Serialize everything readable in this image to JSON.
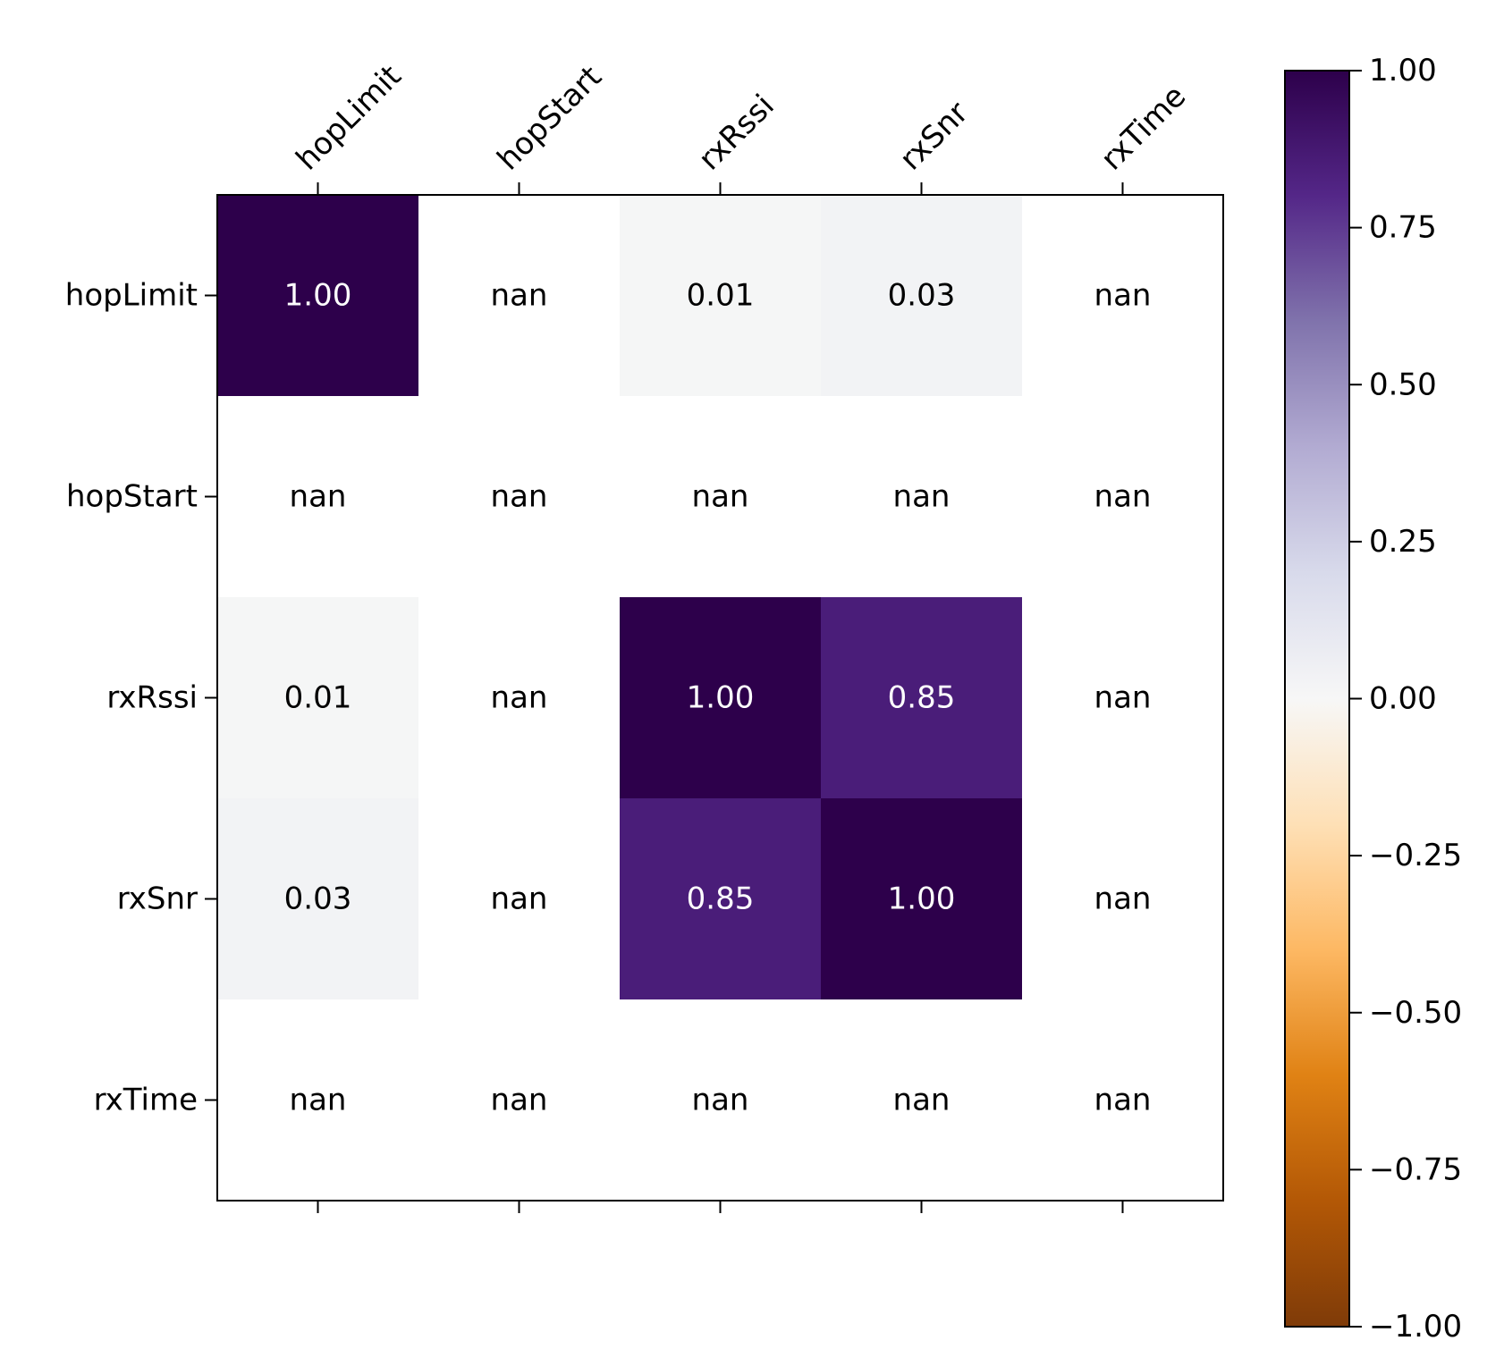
{
  "chart_data": {
    "type": "heatmap",
    "x_labels": [
      "hopLimit",
      "hopStart",
      "rxRssi",
      "rxSnr",
      "rxTime"
    ],
    "y_labels": [
      "hopLimit",
      "hopStart",
      "rxRssi",
      "rxSnr",
      "rxTime"
    ],
    "values": [
      [
        1.0,
        null,
        0.01,
        0.03,
        null
      ],
      [
        null,
        null,
        null,
        null,
        null
      ],
      [
        0.01,
        null,
        1.0,
        0.85,
        null
      ],
      [
        0.03,
        null,
        0.85,
        1.0,
        null
      ],
      [
        null,
        null,
        null,
        null,
        null
      ]
    ],
    "cell_text": [
      [
        "1.00",
        "nan",
        "0.01",
        "0.03",
        "nan"
      ],
      [
        "nan",
        "nan",
        "nan",
        "nan",
        "nan"
      ],
      [
        "0.01",
        "nan",
        "1.00",
        "0.85",
        "nan"
      ],
      [
        "0.03",
        "nan",
        "0.85",
        "1.00",
        "nan"
      ],
      [
        "nan",
        "nan",
        "nan",
        "nan",
        "nan"
      ]
    ],
    "x_tick_position": "top",
    "colorbar": {
      "range": [
        -1.0,
        1.0
      ],
      "ticks": [
        1.0,
        0.75,
        0.5,
        0.25,
        0.0,
        -0.25,
        -0.5,
        -0.75,
        -1.0
      ],
      "tick_labels": [
        "1.00",
        "0.75",
        "0.50",
        "0.25",
        "0.00",
        "−0.25",
        "−0.50",
        "−0.75",
        "−1.00"
      ],
      "colormap": "PuOr",
      "colormap_stops": [
        "#7f3b08",
        "#b35806",
        "#e08214",
        "#fdb863",
        "#fee0b6",
        "#f7f7f7",
        "#d8daeb",
        "#b2abd2",
        "#8073ac",
        "#542788",
        "#2d004b"
      ]
    }
  }
}
